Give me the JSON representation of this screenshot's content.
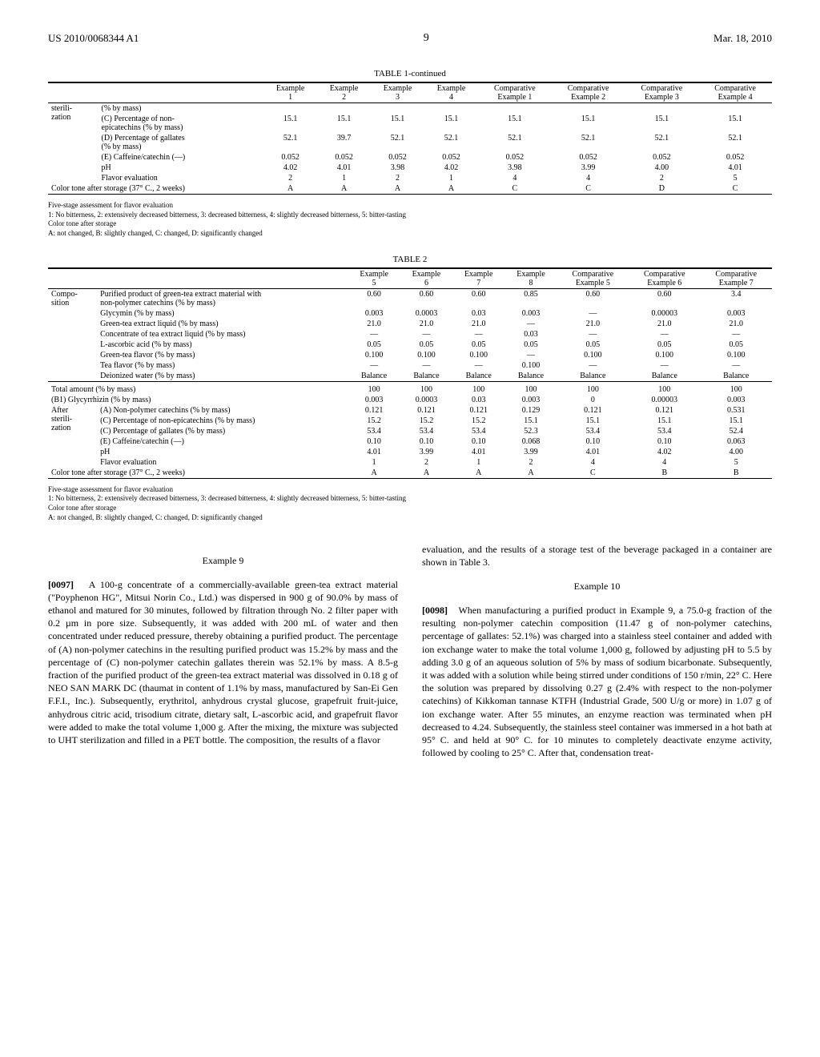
{
  "header": {
    "pub_number": "US 2010/0068344 A1",
    "page_number": "9",
    "pub_date": "Mar. 18, 2010"
  },
  "table1": {
    "caption": "TABLE 1-continued",
    "col_headers": [
      "Example 1",
      "Example 2",
      "Example 3",
      "Example 4",
      "Comparative Example 1",
      "Comparative Example 2",
      "Comparative Example 3",
      "Comparative Example 4"
    ],
    "section": "sterili-\nzation",
    "rows": [
      {
        "label": "(% by mass)",
        "vals": [
          "",
          "",
          "",
          "",
          "",
          "",
          "",
          ""
        ]
      },
      {
        "label": "(C) Percentage of non-\nepicatechins (% by mass)",
        "vals": [
          "15.1",
          "15.1",
          "15.1",
          "15.1",
          "15.1",
          "15.1",
          "15.1",
          "15.1"
        ]
      },
      {
        "label": "(D) Percentage of gallates\n(% by mass)",
        "vals": [
          "52.1",
          "39.7",
          "52.1",
          "52.1",
          "52.1",
          "52.1",
          "52.1",
          "52.1"
        ]
      },
      {
        "label": "(E) Caffeine/catechin (—)",
        "vals": [
          "0.052",
          "0.052",
          "0.052",
          "0.052",
          "0.052",
          "0.052",
          "0.052",
          "0.052"
        ]
      },
      {
        "label": "pH",
        "vals": [
          "4.02",
          "4.01",
          "3.98",
          "4.02",
          "3.98",
          "3.99",
          "4.00",
          "4.01"
        ]
      },
      {
        "label": "Flavor evaluation",
        "vals": [
          "2",
          "1",
          "2",
          "1",
          "4",
          "4",
          "2",
          "5"
        ]
      }
    ],
    "color_row": {
      "label": "Color tone after storage (37° C., 2 weeks)",
      "vals": [
        "A",
        "A",
        "A",
        "A",
        "C",
        "C",
        "D",
        "C"
      ]
    },
    "footnotes": [
      "Five-stage assessment for flavor evaluation",
      "1: No bitterness, 2: extensively decreased bitterness, 3: decreased bitterness, 4: slightly decreased bitterness, 5: bitter-tasting",
      "Color tone after storage",
      "A: not changed, B: slightly changed, C: changed, D: significantly changed"
    ]
  },
  "table2": {
    "caption": "TABLE 2",
    "col_headers": [
      "Example 5",
      "Example 6",
      "Example 7",
      "Example 8",
      "Comparative Example 5",
      "Comparative Example 6",
      "Comparative Example 7"
    ],
    "section_compo": "Compo-\nsition",
    "compo_rows": [
      {
        "label": "Purified product of green-tea extract material with\nnon-polymer catechins (% by mass)",
        "vals": [
          "0.60",
          "0.60",
          "0.60",
          "0.85",
          "0.60",
          "0.60",
          "3.4"
        ]
      },
      {
        "label": "Glycymin (% by mass)",
        "vals": [
          "0.003",
          "0.0003",
          "0.03",
          "0.003",
          "—",
          "0.00003",
          "0.003"
        ]
      },
      {
        "label": "Green-tea extract liquid (% by mass)",
        "vals": [
          "21.0",
          "21.0",
          "21.0",
          "—",
          "21.0",
          "21.0",
          "21.0"
        ]
      },
      {
        "label": "Concentrate of tea extract liquid (% by mass)",
        "vals": [
          "—",
          "—",
          "—",
          "0.03",
          "—",
          "—",
          "—"
        ]
      },
      {
        "label": "L-ascorbic acid (% by mass)",
        "vals": [
          "0.05",
          "0.05",
          "0.05",
          "0.05",
          "0.05",
          "0.05",
          "0.05"
        ]
      },
      {
        "label": "Green-tea flavor (% by mass)",
        "vals": [
          "0.100",
          "0.100",
          "0.100",
          "—",
          "0.100",
          "0.100",
          "0.100"
        ]
      },
      {
        "label": "Tea flavor (% by mass)",
        "vals": [
          "—",
          "—",
          "—",
          "0.100",
          "—",
          "—",
          "—"
        ]
      },
      {
        "label": "Deionized water (% by mass)",
        "vals": [
          "Balance",
          "Balance",
          "Balance",
          "Balance",
          "Balance",
          "Balance",
          "Balance"
        ]
      }
    ],
    "mid_rows": [
      {
        "section": "",
        "label": "Total amount (% by mass)",
        "vals": [
          "100",
          "100",
          "100",
          "100",
          "100",
          "100",
          "100"
        ]
      },
      {
        "section": "",
        "label": "(B1) Glycyrrhizin (% by mass)",
        "vals": [
          "0.003",
          "0.0003",
          "0.03",
          "0.003",
          "0",
          "0.00003",
          "0.003"
        ]
      }
    ],
    "section_after": "After\nsterili-\nzation",
    "after_rows": [
      {
        "label": "(A) Non-polymer catechins (% by mass)",
        "vals": [
          "0.121",
          "0.121",
          "0.121",
          "0.129",
          "0.121",
          "0.121",
          "0.531"
        ]
      },
      {
        "label": "(C) Percentage of non-epicatechins (% by mass)",
        "vals": [
          "15.2",
          "15.2",
          "15.2",
          "15.1",
          "15.1",
          "15.1",
          "15.1"
        ]
      },
      {
        "label": "(C) Percentage of gallates (% by mass)",
        "vals": [
          "53.4",
          "53.4",
          "53.4",
          "52.3",
          "53.4",
          "53.4",
          "52.4"
        ]
      },
      {
        "label": "(E) Caffeine/catechin (—)",
        "vals": [
          "0.10",
          "0.10",
          "0.10",
          "0.068",
          "0.10",
          "0.10",
          "0.063"
        ]
      },
      {
        "label": "pH",
        "vals": [
          "4.01",
          "3.99",
          "4.01",
          "3.99",
          "4.01",
          "4.02",
          "4.00"
        ]
      },
      {
        "label": "Flavor evaluation",
        "vals": [
          "1",
          "2",
          "1",
          "2",
          "4",
          "4",
          "5"
        ]
      }
    ],
    "color_row": {
      "label": "Color tone after storage (37° C., 2 weeks)",
      "vals": [
        "A",
        "A",
        "A",
        "A",
        "C",
        "B",
        "B"
      ]
    },
    "footnotes": [
      "Five-stage assessment for flavor evaluation",
      "1: No bitterness, 2: extensively decreased bitterness, 3: decreased bitterness, 4: slightly decreased bitterness, 5: bitter-tasting",
      "Color tone after storage",
      "A: not changed, B: slightly changed, C: changed, D: significantly changed"
    ]
  },
  "body": {
    "ex9_heading": "Example 9",
    "para97_num": "[0097]",
    "para97_text": "A 100-g concentrate of a commercially-available green-tea extract material (\"Poyphenon HG\", Mitsui Norin Co., Ltd.) was dispersed in 900 g of 90.0% by mass of ethanol and matured for 30 minutes, followed by filtration through No. 2 filter paper with 0.2 µm in pore size. Subsequently, it was added with 200 mL of water and then concentrated under reduced pressure, thereby obtaining a purified product. The percentage of (A) non-polymer catechins in the resulting purified product was 15.2% by mass and the percentage of (C) non-polymer catechin gallates therein was 52.1% by mass. A 8.5-g fraction of the purified product of the green-tea extract material was dissolved in 0.18 g of NEO SAN MARK DC (thaumat in content of 1.1% by mass, manufactured by San-Ei Gen F.F.I., Inc.). Subsequently, erythritol, anhydrous crystal glucose, grapefruit fruit-juice, anhydrous citric acid, trisodium citrate, dietary salt, L-ascorbic acid, and grapefruit flavor were added to make the total volume 1,000 g. After the mixing, the mixture was subjected to UHT sterilization and filled in a PET bottle. The composition, the results of a flavor",
    "right_intro": "evaluation, and the results of a storage test of the beverage packaged in a container are shown in Table 3.",
    "ex10_heading": "Example 10",
    "para98_num": "[0098]",
    "para98_text": "When manufacturing a purified product in Example 9, a 75.0-g fraction of the resulting non-polymer catechin composition (11.47 g of non-polymer catechins, percentage of gallates: 52.1%) was charged into a stainless steel container and added with ion exchange water to make the total volume 1,000 g, followed by adjusting pH to 5.5 by adding 3.0 g of an aqueous solution of 5% by mass of sodium bicarbonate. Subsequently, it was added with a solution while being stirred under conditions of 150 r/min, 22° C. Here the solution was prepared by dissolving 0.27 g (2.4% with respect to the non-polymer catechins) of Kikkoman tannase KTFH (Industrial Grade, 500 U/g or more) in 1.07 g of ion exchange water. After 55 minutes, an enzyme reaction was terminated when pH decreased to 4.24. Subsequently, the stainless steel container was immersed in a hot bath at 95° C. and held at 90° C. for 10 minutes to completely deactivate enzyme activity, followed by cooling to 25° C. After that, condensation treat-"
  }
}
